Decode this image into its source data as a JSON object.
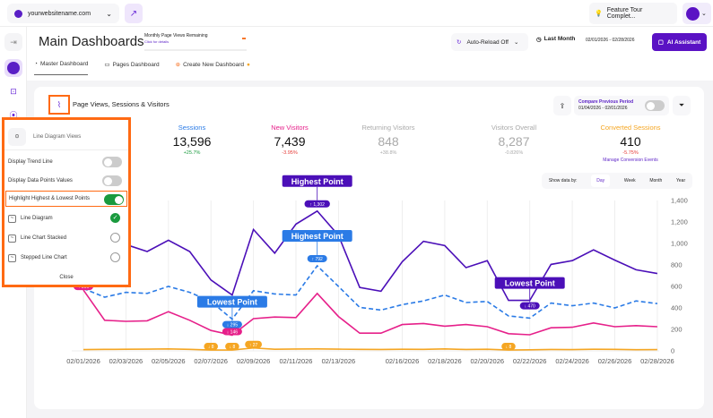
{
  "topbar": {
    "site": "yourwebsitename.com",
    "feature_tour": "Feature Tour Complet...",
    "icons": [
      "globe-icon",
      "chevron-down-icon",
      "external-link-icon",
      "lightbulb-icon",
      "avatar"
    ]
  },
  "header": {
    "title": "Main Dashboards",
    "quota_label": "Monthly Page Views Remaining",
    "quota_link": "Click for details",
    "quota_value": "-",
    "auto_reload": "Auto-Reload Off",
    "period": "Last Month",
    "range": "02/01/2026 - 02/28/2026",
    "ai_assistant": "AI Assistant"
  },
  "tabs": [
    {
      "label": "Master Dashboard",
      "active": true
    },
    {
      "label": "Pages Dashboard"
    },
    {
      "label": "Create New Dashboard"
    }
  ],
  "card": {
    "title": "Page Views, Sessions & Visitors",
    "compare_label": "Compare Previous Period",
    "compare_range": "01/04/2026 - 02/01/2026",
    "compare_on": false
  },
  "metrics": [
    {
      "name": "Sessions",
      "value": "13,596",
      "delta": "+25.7%",
      "color": "#2b7be6",
      "delta_color": "#1a9a3e",
      "value_color": "#111"
    },
    {
      "name": "New Visitors",
      "value": "7,439",
      "delta": "-3.95%",
      "color": "#e6208a",
      "delta_color": "#e53935",
      "value_color": "#111"
    },
    {
      "name": "Returning Visitors",
      "value": "848",
      "delta": "+38.8%",
      "color": "#aaa",
      "delta_color": "#aaa",
      "value_color": "#aaa"
    },
    {
      "name": "Visitors Overall",
      "value": "8,287",
      "delta": "-0.826%",
      "color": "#aaa",
      "delta_color": "#aaa",
      "value_color": "#aaa"
    },
    {
      "name": "Converted Sessions",
      "value": "410",
      "delta": "-5.75%",
      "color": "#f5a623",
      "delta_color": "#e53935",
      "value_color": "#111",
      "link": "Manage Conversion Events"
    }
  ],
  "show_by": {
    "label": "Show data by:",
    "options": [
      "Day",
      "Week",
      "Month",
      "Year"
    ],
    "selected": "Day"
  },
  "panel": {
    "title": "Line Diagram Views",
    "toggles": [
      {
        "label": "Display Trend Line",
        "on": false
      },
      {
        "label": "Display Data Points Values",
        "on": false
      },
      {
        "label": "Highlight Highest & Lowest Points",
        "on": true
      }
    ],
    "views": [
      {
        "label": "Line Diagram",
        "selected": true
      },
      {
        "label": "Line Chart Stacked",
        "selected": false
      },
      {
        "label": "Stepped Line Chart",
        "selected": false
      }
    ],
    "close": "Close"
  },
  "chart_data": {
    "type": "line",
    "x": [
      "02/01/2026",
      "02/02/2026",
      "02/03/2026",
      "02/04/2026",
      "02/05/2026",
      "02/06/2026",
      "02/07/2026",
      "02/08/2026",
      "02/09/2026",
      "02/10/2026",
      "02/11/2026",
      "02/12/2026",
      "02/13/2026",
      "02/14/2026",
      "02/15/2026",
      "02/16/2026",
      "02/17/2026",
      "02/18/2026",
      "02/19/2026",
      "02/20/2026",
      "02/21/2026",
      "02/22/2026",
      "02/23/2026",
      "02/24/2026",
      "02/25/2026",
      "02/26/2026",
      "02/27/2026",
      "02/28/2026"
    ],
    "x_tick_labels": [
      "02/01/2026",
      "02/03/2026",
      "02/05/2026",
      "02/07/2026",
      "02/09/2026",
      "02/11/2026",
      "02/13/2026",
      "02/16/2026",
      "02/18/2026",
      "02/20/2026",
      "02/22/2026",
      "02/24/2026",
      "02/26/2026",
      "02/28/2026"
    ],
    "ylim": [
      0,
      1400
    ],
    "y_ticks": [
      "0",
      "200",
      "400",
      "600",
      "800",
      "1,000",
      "1,200",
      "1,400"
    ],
    "grid": "vertical",
    "series": [
      {
        "key": "pageviews",
        "color": "#4b0fb8",
        "dashed": false,
        "values": [
          950,
          1010,
          990,
          925,
          1030,
          925,
          660,
          520,
          1130,
          910,
          1180,
          1302,
          1075,
          590,
          555,
          830,
          1020,
          980,
          775,
          840,
          470,
          470,
          805,
          840,
          940,
          845,
          755,
          720
        ],
        "annotations": [
          {
            "type": "Highest Point",
            "index": 11,
            "label": "↑ 1,302"
          },
          {
            "type": "Lowest Point",
            "index": 21,
            "label": "↓ 470"
          }
        ]
      },
      {
        "key": "sessions",
        "color": "#2b7be6",
        "dashed": true,
        "values": [
          580,
          500,
          545,
          535,
          600,
          545,
          460,
          295,
          560,
          530,
          520,
          792,
          600,
          405,
          380,
          430,
          465,
          520,
          450,
          460,
          325,
          305,
          445,
          420,
          445,
          400,
          465,
          440
        ],
        "annotations": [
          {
            "type": "Highest Point",
            "index": 11,
            "label": "↑ 792"
          },
          {
            "type": "Lowest Point",
            "index": 7,
            "label": "↓ 295"
          }
        ]
      },
      {
        "key": "new_visitors",
        "color": "#e6208a",
        "dashed": false,
        "values": [
          566,
          285,
          275,
          280,
          365,
          285,
          190,
          146,
          300,
          315,
          310,
          535,
          320,
          165,
          165,
          245,
          255,
          230,
          245,
          225,
          160,
          150,
          215,
          220,
          260,
          225,
          235,
          225
        ],
        "annotations": [
          {
            "type": "pill",
            "index": 0,
            "label": "↑ 566"
          },
          {
            "type": "pill",
            "index": 7,
            "label": "↓ 146"
          }
        ]
      },
      {
        "key": "converted",
        "color": "#f5a623",
        "dashed": false,
        "values": [
          12,
          14,
          15,
          16,
          18,
          14,
          8,
          8,
          27,
          15,
          17,
          18,
          16,
          14,
          13,
          15,
          14,
          18,
          13,
          15,
          8,
          10,
          13,
          12,
          15,
          14,
          11,
          12
        ],
        "annotations": [
          {
            "type": "pill",
            "index": 6,
            "label": "↓ 8"
          },
          {
            "type": "pill",
            "index": 7,
            "label": "↓ 8"
          },
          {
            "type": "pill",
            "index": 8,
            "label": "↑ 27"
          },
          {
            "type": "pill",
            "index": 20,
            "label": "↓ 8"
          }
        ]
      }
    ]
  }
}
